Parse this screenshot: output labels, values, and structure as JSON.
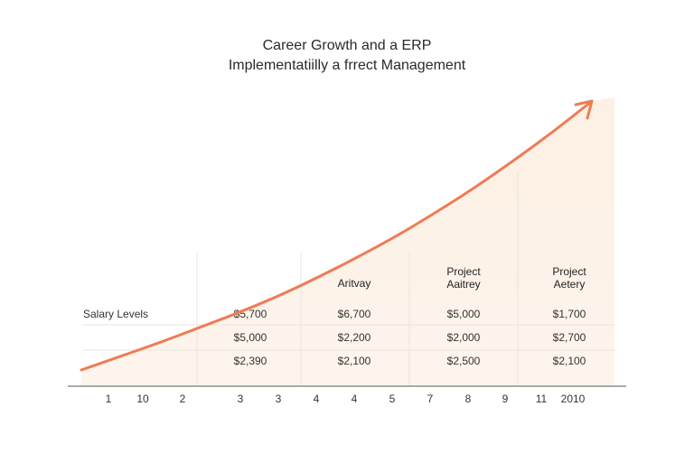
{
  "chart_data": {
    "type": "area",
    "title_line1": "Career Growth and a ERP",
    "title_line2": "Implementatiilly a frrect Management",
    "xlabel": "",
    "ylabel": "",
    "x_ticks": [
      "1",
      "10",
      "2",
      "3",
      "3",
      "4",
      "4",
      "5",
      "7",
      "8",
      "9",
      "11",
      "2010"
    ],
    "series": [
      {
        "type": "line",
        "color": "#ef7b56",
        "arrow": true,
        "x": [
          0,
          1,
          2,
          3,
          4,
          5,
          6,
          7,
          8,
          9,
          10,
          11,
          12,
          13
        ],
        "y": [
          0,
          5.5,
          11,
          17,
          23,
          29.5,
          37,
          45,
          53.5,
          63,
          73,
          84,
          95.5,
          108
        ]
      }
    ],
    "row_label": "Salary Levels",
    "column_headers": [
      "",
      "Aritvay",
      "Project\nAaitrey",
      "Project\nAetery"
    ],
    "table": [
      [
        "$5,700",
        "$6,700",
        "$5,000",
        "$1,700"
      ],
      [
        "$5,000",
        "$2,200",
        "$2,000",
        "$2,700"
      ],
      [
        "$2,390",
        "$2,100",
        "$2,500",
        "$2,100"
      ]
    ],
    "colors": {
      "accent": "#ef7b56",
      "fill": "#fdf1e7",
      "grid": "#e9e4df",
      "axis": "#777777"
    }
  }
}
